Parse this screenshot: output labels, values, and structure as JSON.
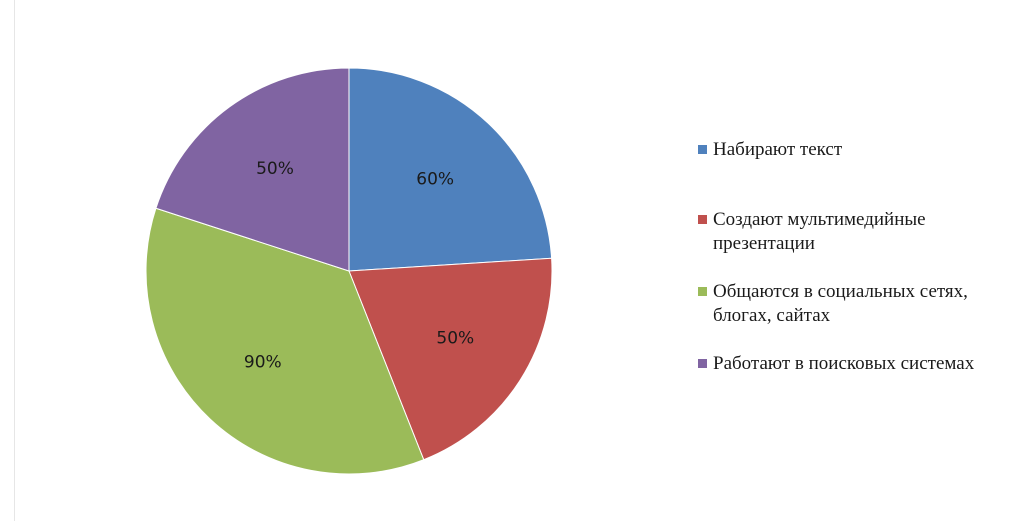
{
  "chart_data": {
    "type": "pie",
    "title": "",
    "categories": [
      "Набирают текст",
      "Создают мультимедийные презентации",
      "Общаются в социальных сетях, блогах, сайтах",
      "Работают в поисковых системах"
    ],
    "values": [
      60,
      50,
      90,
      50
    ],
    "data_labels": [
      "60%",
      "50%",
      "90%",
      "50%"
    ],
    "colors": [
      "#4f81bd",
      "#c0504d",
      "#9bbb59",
      "#8064a2"
    ],
    "legend_position": "right",
    "start_angle": "top",
    "direction": "clockwise"
  },
  "legend": {
    "items": [
      {
        "label": "Набирают текст",
        "color": "#4f81bd"
      },
      {
        "label": "Создают мультимедийные презентации",
        "color": "#c0504d"
      },
      {
        "label": "Общаются в социальных сетях, блогах, сайтах",
        "color": "#9bbb59"
      },
      {
        "label": "Работают в поисковых системах",
        "color": "#8064a2"
      }
    ]
  }
}
